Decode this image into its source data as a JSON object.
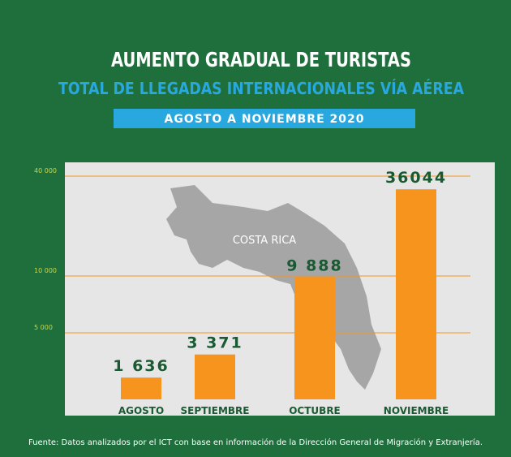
{
  "chart_data": {
    "type": "bar",
    "title": "AUMENTO GRADUAL DE TURISTAS",
    "subtitle": "TOTAL DE LLEGADAS INTERNACIONALES VÍA AÉREA",
    "period": "AGOSTO A NOVIEMBRE 2020",
    "annotation": "COSTA RICA",
    "source": "Fuente: Datos analizados por el ICT con base en información de la Dirección General de Migración y Extranjería.",
    "categories": [
      "AGOSTO",
      "SEPTIEMBRE",
      "OCTUBRE",
      "NOVIEMBRE"
    ],
    "values": [
      1636,
      3371,
      9888,
      36044
    ],
    "value_labels": [
      "1 636",
      "3 371",
      "9 888",
      "36044"
    ],
    "color": "#f7941d",
    "ylim": [
      0,
      40000
    ],
    "yticks": [
      {
        "value": 5000,
        "label": "5 000"
      },
      {
        "value": 10000,
        "label": "10 000"
      },
      {
        "value": 40000,
        "label": "40 000"
      }
    ],
    "grid": true
  }
}
